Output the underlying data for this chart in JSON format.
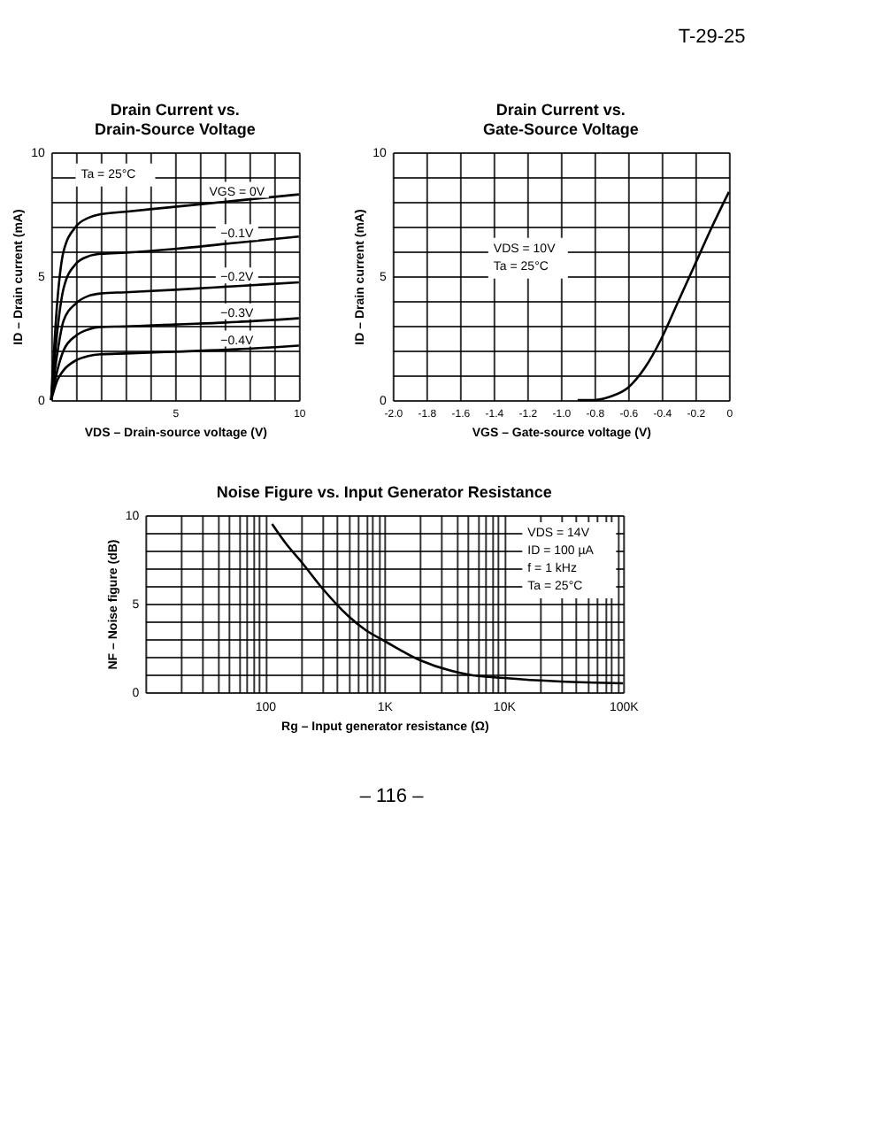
{
  "chart_data": [
    {
      "type": "line",
      "title": "Drain Current vs.\nDrain-Source Voltage",
      "xlabel": "VDS – Drain-source voltage (V)",
      "ylabel": "ID – Drain current (mA)",
      "annotations": [
        "Ta = 25°C"
      ],
      "grid": true,
      "legend": false,
      "x": [
        0,
        0.25,
        0.5,
        1,
        1.5,
        2,
        3,
        5,
        7.5,
        10
      ],
      "xlim": [
        0,
        10
      ],
      "ylim": [
        0,
        10
      ],
      "xticks": [
        {
          "value": 0,
          "label": null
        },
        {
          "value": 1,
          "label": null
        },
        {
          "value": 2,
          "label": null
        },
        {
          "value": 3,
          "label": null
        },
        {
          "value": 4,
          "label": null
        },
        5,
        {
          "value": 6,
          "label": null
        },
        {
          "value": 7,
          "label": null
        },
        {
          "value": 8,
          "label": null
        },
        {
          "value": 9,
          "label": null
        },
        10
      ],
      "yticks": [
        0,
        {
          "value": 1,
          "label": null
        },
        {
          "value": 2,
          "label": null
        },
        {
          "value": 3,
          "label": null
        },
        {
          "value": 4,
          "label": null
        },
        5,
        {
          "value": 6,
          "label": null
        },
        {
          "value": 7,
          "label": null
        },
        {
          "value": 8,
          "label": null
        },
        {
          "value": 9,
          "label": null
        },
        10
      ],
      "series": [
        {
          "name": "VGS = 0V",
          "color": "#000000",
          "values": [
            0,
            4,
            6,
            7,
            7.35,
            7.5,
            7.6,
            7.8,
            8.05,
            8.3
          ]
        },
        {
          "name": "−0.1V",
          "color": "#000000",
          "values": [
            0,
            2.8,
            4.5,
            5.5,
            5.8,
            5.9,
            5.95,
            6.1,
            6.35,
            6.6
          ]
        },
        {
          "name": "−0.2V",
          "color": "#000000",
          "values": [
            0,
            1.9,
            3.2,
            3.9,
            4.2,
            4.3,
            4.35,
            4.45,
            4.6,
            4.75
          ]
        },
        {
          "name": "−0.3V",
          "color": "#000000",
          "values": [
            0,
            1.2,
            2.0,
            2.6,
            2.85,
            2.95,
            2.97,
            3.05,
            3.15,
            3.3
          ]
        },
        {
          "name": "−0.4V",
          "color": "#000000",
          "values": [
            0,
            0.8,
            1.2,
            1.6,
            1.78,
            1.85,
            1.88,
            1.95,
            2.05,
            2.2
          ]
        }
      ]
    },
    {
      "type": "line",
      "title": "Drain Current vs.\nGate-Source Voltage",
      "xlabel": "VGS – Gate-source voltage (V)",
      "ylabel": "ID – Drain current (mA)",
      "annotations": [
        "T-29-25",
        "VDS = 10V",
        "Ta = 25°C"
      ],
      "grid": true,
      "legend": false,
      "x": [
        -0.9,
        -0.8,
        -0.7,
        -0.6,
        -0.5,
        -0.4,
        -0.3,
        -0.2,
        -0.1,
        0
      ],
      "xlim": [
        -2.0,
        0
      ],
      "ylim": [
        0,
        10
      ],
      "xticks": [
        {
          "value": -2.0,
          "label": "-2.0"
        },
        -1.8,
        -1.6,
        -1.4,
        -1.2,
        {
          "value": -1.0,
          "label": "-1.0"
        },
        -0.8,
        -0.6,
        -0.4,
        -0.2,
        0
      ],
      "yticks": [
        0,
        {
          "value": 1,
          "label": null
        },
        {
          "value": 2,
          "label": null
        },
        {
          "value": 3,
          "label": null
        },
        {
          "value": 4,
          "label": null
        },
        5,
        {
          "value": 6,
          "label": null
        },
        {
          "value": 7,
          "label": null
        },
        {
          "value": 8,
          "label": null
        },
        {
          "value": 9,
          "label": null
        },
        10
      ],
      "series": [
        {
          "color": "#000000",
          "values": [
            0,
            0,
            0.15,
            0.5,
            1.3,
            2.5,
            4.0,
            5.5,
            7.0,
            8.4
          ]
        }
      ]
    },
    {
      "type": "line",
      "title": "Noise Figure vs. Input Generator Resistance",
      "xlabel": "Rg – Input generator resistance (Ω)",
      "ylabel": "NF – Noise figure (dB)",
      "annotations": [
        "VDS = 14V",
        "ID = 100 µA",
        "f = 1 kHz",
        "Ta = 25°C",
        "– 116 –"
      ],
      "grid": true,
      "legend": false,
      "log": "x",
      "x": [
        115,
        150,
        200,
        300,
        500,
        700,
        1000,
        2000,
        5000,
        10000,
        30000,
        100000
      ],
      "xlim": [
        10,
        100000
      ],
      "ylim": [
        0,
        10
      ],
      "xticks": [
        {
          "value": 10,
          "label": null
        },
        {
          "value": 20,
          "label": null
        },
        {
          "value": 30,
          "label": null
        },
        {
          "value": 40,
          "label": null
        },
        {
          "value": 50,
          "label": null
        },
        {
          "value": 60,
          "label": null
        },
        {
          "value": 70,
          "label": null
        },
        {
          "value": 80,
          "label": null
        },
        {
          "value": 90,
          "label": null
        },
        100,
        {
          "value": 200,
          "label": null
        },
        {
          "value": 300,
          "label": null
        },
        {
          "value": 400,
          "label": null
        },
        {
          "value": 500,
          "label": null
        },
        {
          "value": 600,
          "label": null
        },
        {
          "value": 700,
          "label": null
        },
        {
          "value": 800,
          "label": null
        },
        {
          "value": 900,
          "label": null
        },
        {
          "value": 1000,
          "label": "1K"
        },
        {
          "value": 2000,
          "label": null
        },
        {
          "value": 3000,
          "label": null
        },
        {
          "value": 4000,
          "label": null
        },
        {
          "value": 5000,
          "label": null
        },
        {
          "value": 6000,
          "label": null
        },
        {
          "value": 7000,
          "label": null
        },
        {
          "value": 8000,
          "label": null
        },
        {
          "value": 9000,
          "label": null
        },
        {
          "value": 10000,
          "label": "10K"
        },
        {
          "value": 20000,
          "label": null
        },
        {
          "value": 30000,
          "label": null
        },
        {
          "value": 40000,
          "label": null
        },
        {
          "value": 50000,
          "label": null
        },
        {
          "value": 60000,
          "label": null
        },
        {
          "value": 70000,
          "label": null
        },
        {
          "value": 80000,
          "label": null
        },
        {
          "value": 90000,
          "label": null
        },
        {
          "value": 100000,
          "label": "100K"
        }
      ],
      "yticks": [
        0,
        {
          "value": 1,
          "label": null
        },
        {
          "value": 2,
          "label": null
        },
        {
          "value": 3,
          "label": null
        },
        {
          "value": 4,
          "label": null
        },
        5,
        {
          "value": 6,
          "label": null
        },
        {
          "value": 7,
          "label": null
        },
        {
          "value": 8,
          "label": null
        },
        {
          "value": 9,
          "label": null
        },
        10
      ],
      "series": [
        {
          "color": "#000000",
          "values": [
            9.5,
            8.4,
            7.4,
            5.9,
            4.3,
            3.5,
            2.9,
            1.8,
            1.0,
            0.8,
            0.6,
            0.5
          ]
        }
      ]
    }
  ]
}
